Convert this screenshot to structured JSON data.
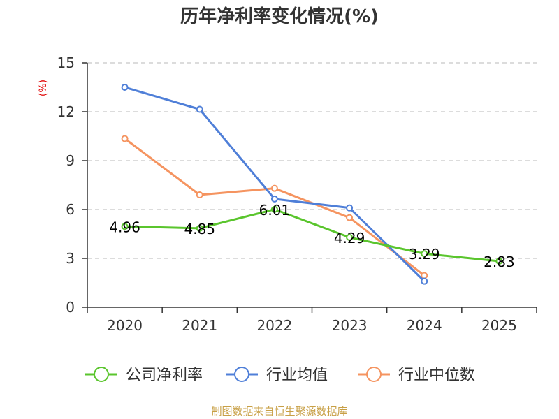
{
  "chart_data": {
    "type": "line",
    "title": "历年净利率变化情况(%)",
    "ylabel": "(%)",
    "xlabel": "",
    "categories": [
      "2020",
      "2021",
      "2022",
      "2023",
      "2024",
      "2025"
    ],
    "ylim": [
      0,
      15
    ],
    "yticks": [
      0,
      3,
      6,
      9,
      12,
      15
    ],
    "grid": true,
    "legend_position": "bottom",
    "series": [
      {
        "name": "公司净利率",
        "color": "#5ac52d",
        "values": [
          4.96,
          4.85,
          6.01,
          4.29,
          3.29,
          2.83
        ],
        "labels": [
          "4.96",
          "4.85",
          "6.01",
          "4.29",
          "3.29",
          "2.83"
        ]
      },
      {
        "name": "行业均值",
        "color": "#4f7fd8",
        "values": [
          13.5,
          12.15,
          6.65,
          6.1,
          1.6,
          null
        ]
      },
      {
        "name": "行业中位数",
        "color": "#f59460",
        "values": [
          10.35,
          6.9,
          7.3,
          5.5,
          1.95,
          null
        ]
      }
    ],
    "source": "制图数据来自恒生聚源数据库"
  }
}
